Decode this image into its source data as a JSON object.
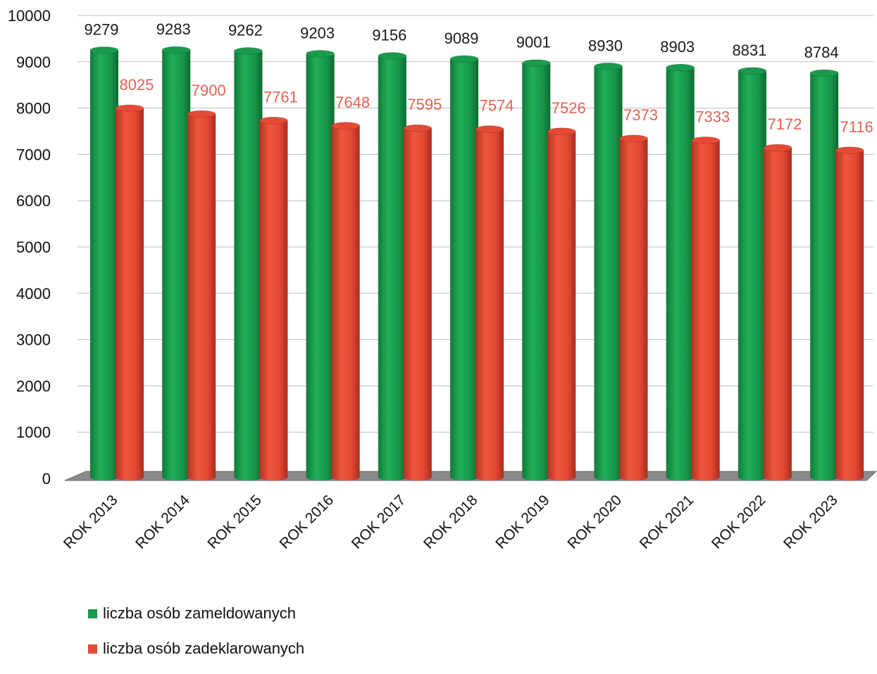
{
  "chart_data": {
    "type": "bar",
    "categories": [
      "ROK 2013",
      "ROK 2014",
      "ROK 2015",
      "ROK 2016",
      "ROK 2017",
      "ROK 2018",
      "ROK 2019",
      "ROK 2020",
      "ROK 2021",
      "ROK 2022",
      "ROK 2023"
    ],
    "series": [
      {
        "name": "liczba osób zameldowanych",
        "color": "#1a9a4e",
        "label_color": "#1a1a1a",
        "values": [
          9279,
          9283,
          9262,
          9203,
          9156,
          9089,
          9001,
          8930,
          8903,
          8831,
          8784
        ]
      },
      {
        "name": "liczba osób zadeklarowanych",
        "color": "#e44b36",
        "label_color": "#e8604f",
        "values": [
          8025,
          7900,
          7761,
          7648,
          7595,
          7574,
          7526,
          7373,
          7333,
          7172,
          7116
        ]
      }
    ],
    "ylim": [
      0,
      10000
    ],
    "yticks": [
      0,
      1000,
      2000,
      3000,
      4000,
      5000,
      6000,
      7000,
      8000,
      9000,
      10000
    ],
    "grid": true,
    "legend": "bottom-left",
    "title": "",
    "xlabel": "",
    "ylabel": "",
    "floor_color": "#8a8a8a"
  }
}
